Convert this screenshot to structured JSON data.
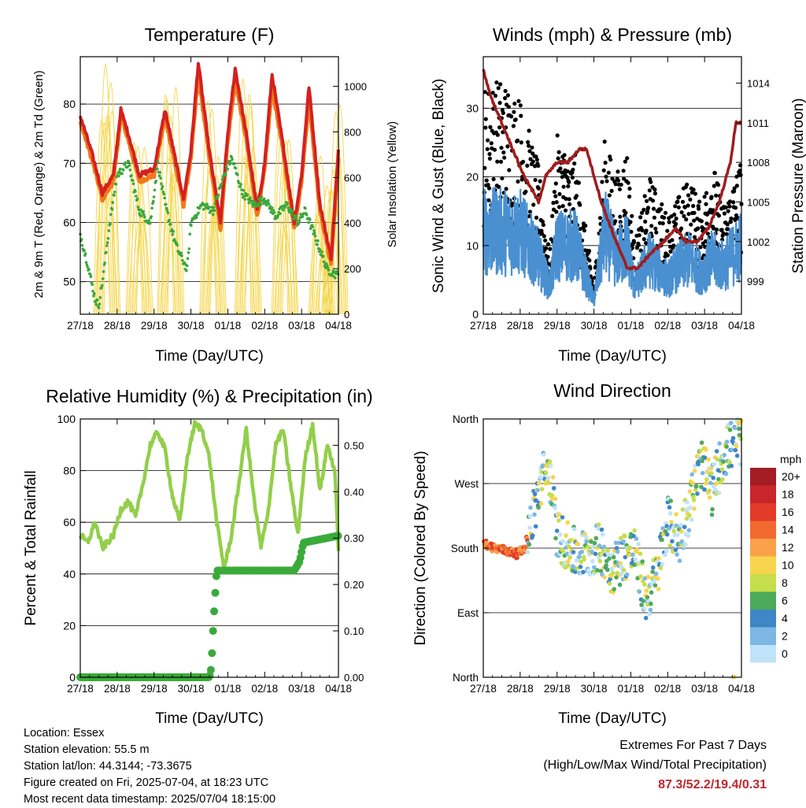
{
  "colors": {
    "temp_red": "#d42020",
    "temp_orange": "#f07a1a",
    "dew_green": "#3aa83a",
    "solar_yellow": "#f5d547",
    "wind_blue": "#4a90d0",
    "gust_black": "#000000",
    "pressure_maroon": "#a01c1c",
    "rh_green": "#92cf4a",
    "precip_green": "#3aaa3a"
  },
  "x_ticks": [
    "27/18",
    "28/18",
    "29/18",
    "30/18",
    "01/18",
    "02/18",
    "03/18",
    "04/18"
  ],
  "chart_data": [
    {
      "type": "line",
      "title": "Temperature (F)",
      "xlabel": "Time (Day/UTC)",
      "ylabel": "2m & 9m T (Red, Orange) & 2m Td (Green)",
      "ylabel_right": "Solar Insolation (Yellow)",
      "ylim": [
        44.5,
        88
      ],
      "y_ticks": [
        50,
        60,
        70,
        80
      ],
      "ylim_right": [
        0,
        1130
      ],
      "y_ticks_right": [
        0,
        200,
        400,
        600,
        800,
        1000
      ],
      "grid": "horizontal",
      "series": [
        {
          "x": [
            0,
            0.3,
            0.6,
            0.9,
            1.1,
            1.3,
            1.6,
            2,
            2.3,
            2.5,
            2.8,
            3,
            3.2,
            3.5,
            3.8,
            4,
            4.2,
            4.5,
            4.8,
            5,
            5.2,
            5.5,
            5.8,
            6,
            6.2,
            6.5,
            6.8,
            7
          ],
          "values": [
            78,
            72,
            65,
            68,
            79,
            75,
            68,
            69,
            79,
            73,
            64,
            72,
            87,
            72,
            60,
            75,
            86,
            75,
            62,
            70,
            85,
            73,
            60,
            68,
            83,
            63,
            54,
            72
          ]
        },
        {
          "x": [
            0,
            0.3,
            0.6,
            0.9,
            1.1,
            1.3,
            1.6,
            2,
            2.3,
            2.5,
            2.8,
            3,
            3.2,
            3.5,
            3.8,
            4,
            4.2,
            4.5,
            4.8,
            5,
            5.2,
            5.5,
            5.8,
            6,
            6.2,
            6.5,
            6.8,
            7
          ],
          "values": [
            77,
            71,
            64,
            67,
            78,
            74,
            67,
            68,
            78,
            72,
            63,
            71,
            85,
            71,
            59,
            74,
            84,
            74,
            61,
            69,
            83,
            72,
            59,
            67,
            81,
            62,
            53,
            71
          ]
        },
        {
          "x": [
            0,
            0.2,
            0.4,
            0.5,
            0.6,
            0.8,
            1,
            1.3,
            1.6,
            1.9,
            2.1,
            2.3,
            2.6,
            2.9,
            3,
            3.3,
            3.6,
            3.9,
            4.1,
            4.4,
            4.7,
            5,
            5.3,
            5.6,
            5.9,
            6.1,
            6.4,
            6.7,
            7
          ],
          "values": [
            58,
            53,
            47,
            46,
            50,
            60,
            68,
            70,
            62,
            60,
            70,
            63,
            56,
            52,
            60,
            63,
            62,
            68,
            71,
            65,
            63,
            64,
            61,
            63,
            60,
            62,
            57,
            52,
            51
          ]
        },
        {
          "peaks": [
            [
              0.72,
              1100
            ],
            [
              1.6,
              850
            ],
            [
              2.45,
              1050
            ],
            [
              3.6,
              1020
            ],
            [
              4.55,
              1050
            ],
            [
              5.55,
              950
            ],
            [
              6.55,
              720
            ],
            [
              6.9,
              1020
            ]
          ]
        }
      ]
    },
    {
      "type": "line",
      "title": "Winds (mph) & Pressure (mb)",
      "xlabel": "Time (Day/UTC)",
      "ylabel": "Sonic Wind & Gust (Blue, Black)",
      "ylabel_right": "Station Pressure (Maroon)",
      "ylim": [
        0,
        37.5
      ],
      "y_ticks": [
        0,
        10,
        20,
        30
      ],
      "ylim_right": [
        996.5,
        1016
      ],
      "y_ticks_right": [
        999,
        1002,
        1005,
        1008,
        1011,
        1014
      ],
      "grid": "horizontal",
      "series": [
        {
          "x": [
            0,
            0.5,
            1,
            1.5,
            1.8,
            2,
            2.5,
            3,
            3.3,
            3.6,
            3.9,
            4.1,
            4.5,
            5,
            5.3,
            5.6,
            5.9,
            6.2,
            6.5,
            7
          ],
          "values": [
            12,
            12,
            12,
            8,
            4,
            10,
            10,
            2,
            12,
            8,
            10,
            4,
            8,
            5,
            7,
            8,
            6,
            8,
            7,
            10
          ]
        },
        {
          "x": [
            0,
            0.5,
            1,
            1.5,
            1.8,
            2,
            2.5,
            3,
            3.3,
            3.6,
            3.9,
            4.1,
            4.5,
            5,
            5.3,
            5.6,
            5.9,
            6.2,
            6.5,
            7
          ],
          "values": [
            23,
            24,
            22,
            15,
            6,
            18,
            16,
            3,
            18,
            14,
            17,
            7,
            14,
            10,
            12,
            14,
            11,
            16,
            11,
            16
          ]
        },
        {
          "x": [
            0,
            0.2,
            0.5,
            0.8,
            1.1,
            1.5,
            1.7,
            2,
            2.3,
            2.6,
            2.8,
            3.2,
            3.6,
            3.9,
            4.2,
            4.5,
            4.9,
            5.2,
            5.5,
            5.8,
            6.1,
            6.4,
            6.7,
            6.85,
            7
          ],
          "values": [
            1015,
            1013,
            1011,
            1009,
            1007,
            1005,
            1007,
            1008,
            1008,
            1009,
            1009,
            1005,
            1002,
            1000,
            1000,
            1001,
            1002,
            1003,
            1002,
            1002,
            1003,
            1005,
            1008,
            1011,
            1011
          ]
        }
      ]
    },
    {
      "type": "line",
      "title": "Relative Humidity (%) & Precipitation (in)",
      "xlabel": "Time (Day/UTC)",
      "ylabel": "Percent & Total Rainfall",
      "ylim": [
        0,
        100
      ],
      "y_ticks": [
        0,
        20,
        40,
        60,
        80,
        100
      ],
      "ylim_right": [
        0,
        0.5567
      ],
      "y_ticks_right": [
        "0.00",
        "0.10",
        "0.20",
        "0.30",
        "0.40",
        "0.50"
      ],
      "grid": "horizontal",
      "series": [
        {
          "x": [
            0,
            0.2,
            0.4,
            0.6,
            0.9,
            1.1,
            1.3,
            1.5,
            1.7,
            1.9,
            2.1,
            2.3,
            2.5,
            2.7,
            2.9,
            3.1,
            3.3,
            3.5,
            3.7,
            3.9,
            4.1,
            4.3,
            4.5,
            4.7,
            4.9,
            5.1,
            5.3,
            5.5,
            5.7,
            5.9,
            6.1,
            6.3,
            6.5,
            6.7,
            6.9,
            7
          ],
          "values": [
            55,
            52,
            60,
            50,
            55,
            65,
            68,
            62,
            75,
            90,
            95,
            88,
            70,
            60,
            85,
            98,
            96,
            85,
            60,
            42,
            55,
            75,
            96,
            70,
            50,
            65,
            90,
            96,
            75,
            55,
            85,
            98,
            72,
            90,
            80,
            50
          ]
        },
        {
          "x": [
            0,
            3.5,
            3.55,
            3.6,
            3.65,
            3.7,
            5.8,
            5.95,
            6.05,
            7
          ],
          "values": [
            0,
            0,
            0.02,
            0.1,
            0.17,
            0.23,
            0.23,
            0.25,
            0.29,
            0.305
          ]
        }
      ]
    },
    {
      "type": "scatter",
      "title": "Wind Direction",
      "xlabel": "Time (Day/UTC)",
      "ylabel": "Direction (Colored By Speed)",
      "y_ticks": [
        "North",
        "East",
        "South",
        "West",
        "North"
      ],
      "ylim": [
        0,
        360
      ],
      "grid": "horizontal",
      "legend": {
        "title": "mph",
        "labels": [
          "20+",
          "18",
          "16",
          "14",
          "12",
          "10",
          "8",
          "6",
          "4",
          "2",
          "0"
        ],
        "colors": [
          "#a51d24",
          "#c8262a",
          "#e23b2a",
          "#f26a30",
          "#f9a24a",
          "#f6d54c",
          "#c6dd4c",
          "#4daa5a",
          "#3f86c6",
          "#7db7e4",
          "#bfe3f8"
        ]
      },
      "series": [
        {
          "x": [
            0.1,
            0.3,
            0.5,
            0.7,
            0.9,
            1.1,
            1.4,
            1.6,
            1.8,
            2,
            2.3,
            2.6,
            2.9,
            3.2,
            3.5,
            3.8,
            4.1,
            4.4,
            4.7,
            5,
            5.3,
            5.6,
            5.9,
            6.2,
            6.5,
            6.8
          ],
          "values": [
            185,
            180,
            178,
            175,
            172,
            178,
            235,
            280,
            285,
            200,
            180,
            170,
            175,
            180,
            150,
            170,
            175,
            110,
            140,
            220,
            190,
            240,
            300,
            260,
            310,
            330
          ]
        }
      ]
    }
  ],
  "info": {
    "location": "Location: Essex",
    "elevation": "Station elevation: 55.5 m",
    "latlon": "Station lat/lon: 44.3144; -73.3675",
    "created": "Figure created on Fri, 2025-07-04, at 18:23 UTC",
    "recent": "Most recent data timestamp: 2025/07/04 18:15:00"
  },
  "extremes": {
    "title": "Extremes For Past 7 Days",
    "subtitle": "(High/Low/Max Wind/Total Precipitation)",
    "values": "87.3/52.2/19.4/0.31"
  }
}
